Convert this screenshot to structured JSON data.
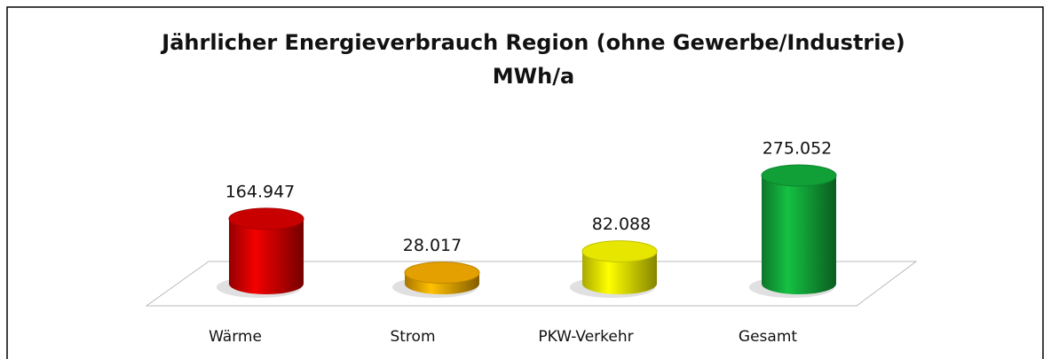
{
  "chart_data": {
    "type": "cylinder",
    "title": "Jährlicher Energieverbrauch Region (ohne Gewerbe/Industrie)",
    "subtitle": "MWh/a",
    "categories": [
      "Wärme",
      "Strom",
      "PKW-Verkehr",
      "Gesamt"
    ],
    "values": [
      164947,
      28017,
      82088,
      275052
    ],
    "value_labels": [
      "164.947",
      "28.017",
      "82.088",
      "275.052"
    ],
    "colors": [
      "#d40000",
      "#f0a800",
      "#f2f200",
      "#12a83a"
    ]
  }
}
